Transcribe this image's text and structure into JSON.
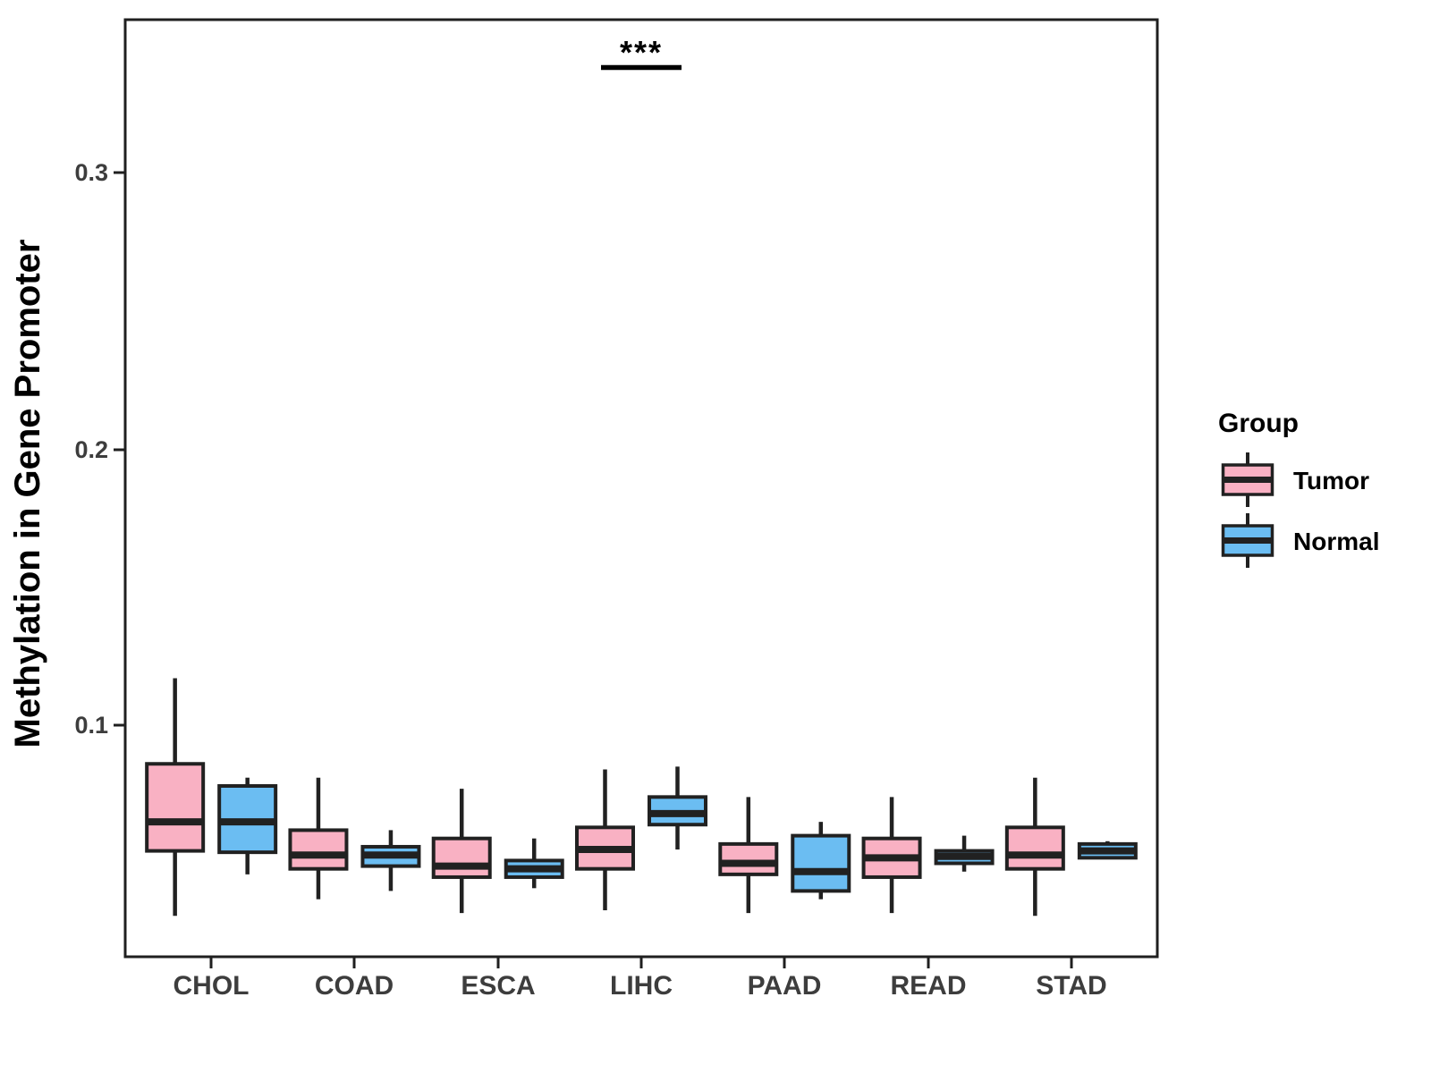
{
  "figure": {
    "background": "#FFFFFF"
  },
  "colors": {
    "tumor_fill": "#F9B1C3",
    "normal_fill": "#6BBDF2",
    "box_stroke": "#212121",
    "panel_border": "#1F1F1F",
    "axis_text": "#3D3D3D",
    "annotation": "#000000"
  },
  "chart_data": {
    "type": "grouped_boxplot",
    "title": "",
    "xlabel": "",
    "ylabel": "Methylation in Gene Promoter",
    "categories": [
      "CHOL",
      "COAD",
      "ESCA",
      "LIHC",
      "PAAD",
      "READ",
      "STAD"
    ],
    "y_ticks": [
      0.1,
      0.2,
      0.3
    ],
    "y_tick_labels": [
      "0.1",
      "0.2",
      "0.3"
    ],
    "ylim": [
      0.016,
      0.355
    ],
    "grid": false,
    "legend": {
      "title": "Group",
      "position": "right",
      "entries": [
        {
          "label": "Tumor",
          "color": "#F9B1C3"
        },
        {
          "label": "Normal",
          "color": "#6BBDF2"
        }
      ]
    },
    "series": [
      {
        "name": "Tumor",
        "fill": "#F9B1C3",
        "boxes": [
          {
            "category": "CHOL",
            "whisker_low": 0.031,
            "q1": 0.0545,
            "median": 0.065,
            "q3": 0.086,
            "whisker_high": 0.117
          },
          {
            "category": "COAD",
            "whisker_low": 0.037,
            "q1": 0.048,
            "median": 0.053,
            "q3": 0.062,
            "whisker_high": 0.081
          },
          {
            "category": "ESCA",
            "whisker_low": 0.032,
            "q1": 0.045,
            "median": 0.049,
            "q3": 0.059,
            "whisker_high": 0.077
          },
          {
            "category": "LIHC",
            "whisker_low": 0.033,
            "q1": 0.048,
            "median": 0.055,
            "q3": 0.063,
            "whisker_high": 0.084
          },
          {
            "category": "PAAD",
            "whisker_low": 0.032,
            "q1": 0.046,
            "median": 0.05,
            "q3": 0.057,
            "whisker_high": 0.074
          },
          {
            "category": "READ",
            "whisker_low": 0.032,
            "q1": 0.045,
            "median": 0.052,
            "q3": 0.059,
            "whisker_high": 0.074
          },
          {
            "category": "STAD",
            "whisker_low": 0.031,
            "q1": 0.048,
            "median": 0.053,
            "q3": 0.063,
            "whisker_high": 0.081
          }
        ]
      },
      {
        "name": "Normal",
        "fill": "#6BBDF2",
        "boxes": [
          {
            "category": "CHOL",
            "whisker_low": 0.046,
            "q1": 0.054,
            "median": 0.065,
            "q3": 0.078,
            "whisker_high": 0.081
          },
          {
            "category": "COAD",
            "whisker_low": 0.04,
            "q1": 0.049,
            "median": 0.053,
            "q3": 0.056,
            "whisker_high": 0.062
          },
          {
            "category": "ESCA",
            "whisker_low": 0.041,
            "q1": 0.045,
            "median": 0.048,
            "q3": 0.051,
            "whisker_high": 0.059
          },
          {
            "category": "LIHC",
            "whisker_low": 0.055,
            "q1": 0.064,
            "median": 0.068,
            "q3": 0.074,
            "whisker_high": 0.085
          },
          {
            "category": "PAAD",
            "whisker_low": 0.037,
            "q1": 0.04,
            "median": 0.047,
            "q3": 0.06,
            "whisker_high": 0.065
          },
          {
            "category": "READ",
            "whisker_low": 0.047,
            "q1": 0.05,
            "median": 0.0525,
            "q3": 0.0545,
            "whisker_high": 0.06
          },
          {
            "category": "STAD",
            "whisker_low": 0.0515,
            "q1": 0.052,
            "median": 0.0545,
            "q3": 0.057,
            "whisker_high": 0.058
          }
        ]
      }
    ],
    "annotations": [
      {
        "type": "significance",
        "label": "***",
        "category": "LIHC"
      }
    ]
  }
}
